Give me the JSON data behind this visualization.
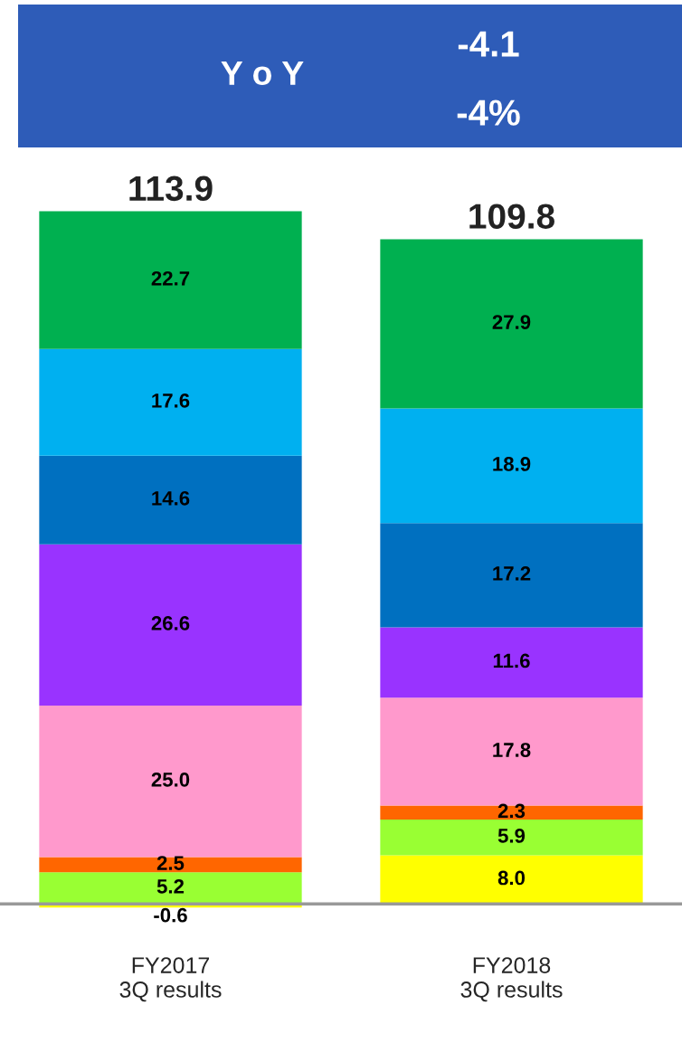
{
  "chart_data": {
    "type": "bar",
    "stacked": true,
    "categories": [
      "FY2017\n3Q results",
      "FY2018\n3Q results"
    ],
    "series": [
      {
        "color": "#ffff00",
        "values": [
          -0.6,
          8.0
        ],
        "value_labels": [
          "-0.6",
          "8.0"
        ]
      },
      {
        "color": "#99ff33",
        "values": [
          5.2,
          5.9
        ],
        "value_labels": [
          "5.2",
          "5.9"
        ]
      },
      {
        "color": "#ff6600",
        "values": [
          2.5,
          2.3
        ],
        "value_labels": [
          "2.5",
          "2.3"
        ]
      },
      {
        "color": "#ff99cc",
        "values": [
          25.0,
          17.8
        ],
        "value_labels": [
          "25.0",
          "17.8"
        ]
      },
      {
        "color": "#9933ff",
        "values": [
          26.6,
          11.6
        ],
        "value_labels": [
          "26.6",
          "11.6"
        ]
      },
      {
        "color": "#0070c0",
        "values": [
          14.6,
          17.2
        ],
        "value_labels": [
          "14.6",
          "17.2"
        ]
      },
      {
        "color": "#00b0f0",
        "values": [
          17.6,
          18.9
        ],
        "value_labels": [
          "17.6",
          "18.9"
        ]
      },
      {
        "color": "#00b050",
        "values": [
          22.7,
          27.9
        ],
        "value_labels": [
          "22.7",
          "27.9"
        ]
      }
    ],
    "totals": [
      "113.9",
      "109.8"
    ],
    "tick_labels": "x",
    "grid": false,
    "legend": false,
    "annotations": [
      "Y o Y",
      "-4.1",
      "-4%"
    ]
  }
}
